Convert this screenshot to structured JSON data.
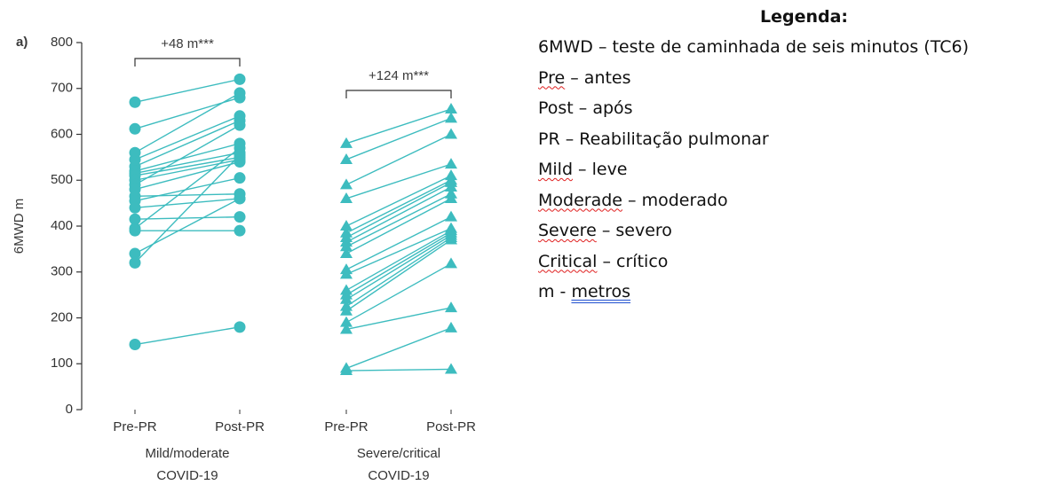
{
  "chart_data": {
    "type": "paired-dot",
    "panel_label": "a)",
    "y_label": "6MWD m",
    "ylim": [
      0,
      800
    ],
    "yticks": [
      0,
      100,
      200,
      300,
      400,
      500,
      600,
      700,
      800
    ],
    "conditions": [
      "Pre-PR",
      "Post-PR"
    ],
    "color": "#3dbcbf",
    "groups": [
      {
        "label": [
          "Mild/moderate",
          "COVID-19"
        ],
        "marker": "circle",
        "annotation": "+48 m***",
        "pre": [
          670,
          612,
          560,
          545,
          530,
          520,
          515,
          510,
          500,
          490,
          480,
          465,
          455,
          440,
          415,
          395,
          390,
          340,
          320,
          142
        ],
        "post": [
          720,
          680,
          690,
          640,
          630,
          580,
          560,
          550,
          545,
          620,
          540,
          470,
          505,
          460,
          420,
          570,
          390,
          460,
          555,
          180
        ]
      },
      {
        "label": [
          "Severe/critical",
          "COVID-19"
        ],
        "marker": "triangle",
        "annotation": "+124 m***",
        "pre": [
          580,
          545,
          490,
          460,
          400,
          385,
          375,
          365,
          355,
          340,
          305,
          295,
          260,
          250,
          240,
          225,
          215,
          190,
          175,
          90,
          85
        ],
        "post": [
          655,
          635,
          600,
          535,
          510,
          500,
          495,
          485,
          470,
          460,
          420,
          395,
          390,
          385,
          380,
          375,
          370,
          318,
          222,
          178,
          88
        ]
      }
    ]
  },
  "legend_box": {
    "title": "Legenda:",
    "lines": [
      [
        {
          "text": "6MWD – teste de caminhada de seis minutos (TC6)"
        }
      ],
      [
        {
          "text": "Pre",
          "underline": "spelling"
        },
        {
          "text": " – antes"
        }
      ],
      [
        {
          "text": "Post – após"
        }
      ],
      [
        {
          "text": "PR – Reabilitação pulmonar"
        }
      ],
      [
        {
          "text": "Mild",
          "underline": "spelling"
        },
        {
          "text": " – leve"
        }
      ],
      [
        {
          "text": "Moderade",
          "underline": "spelling"
        },
        {
          "text": " – moderado"
        }
      ],
      [
        {
          "text": "Severe",
          "underline": "spelling"
        },
        {
          "text": " – severo"
        }
      ],
      [
        {
          "text": "Critical",
          "underline": "spelling"
        },
        {
          "text": " – crítico"
        }
      ],
      [
        {
          "text": "m - "
        },
        {
          "text": "metros",
          "underline": "grammar"
        }
      ]
    ]
  }
}
